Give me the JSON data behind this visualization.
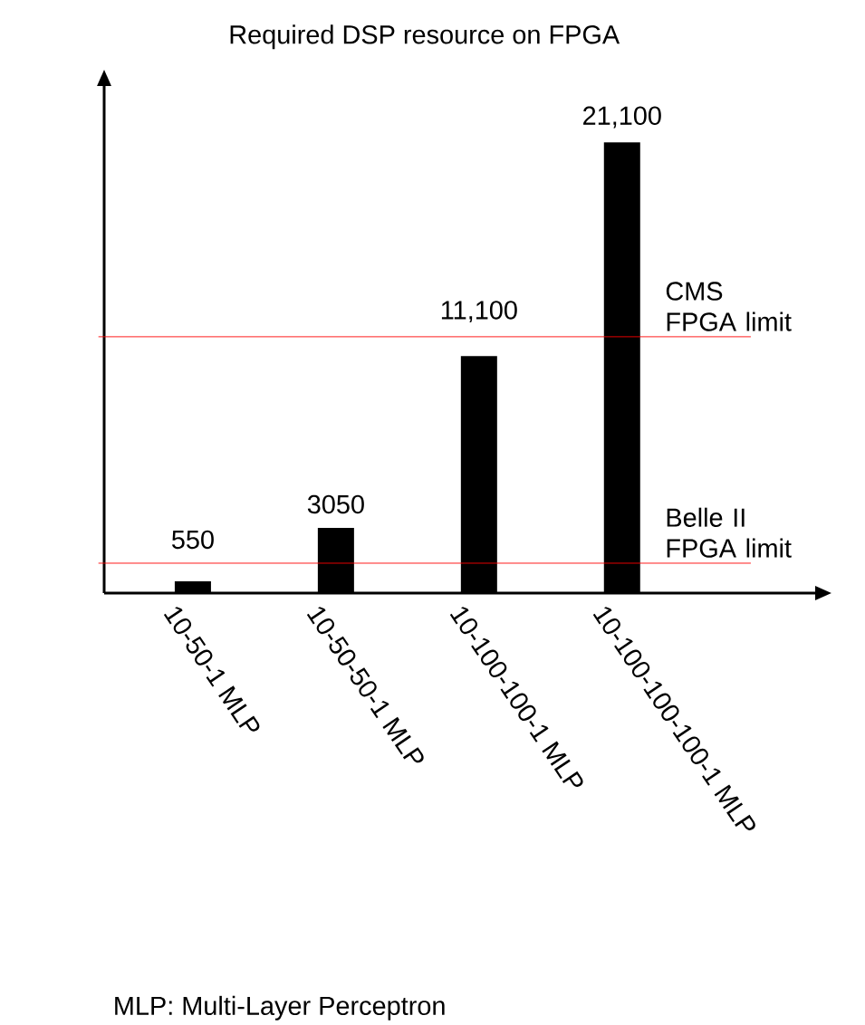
{
  "chart_data": {
    "type": "bar",
    "title": "Required DSP resource on FPGA",
    "categories": [
      "10-50-1 MLP",
      "10-50-50-1 MLP",
      "10-100-100-1 MLP",
      "10-100-100-100-1 MLP"
    ],
    "values": [
      550,
      3050,
      11100,
      21100
    ],
    "value_labels": [
      "550",
      "3050",
      "11,100",
      "21,100"
    ],
    "color": "#000000",
    "ref_lines": [
      {
        "axis": "y",
        "value": 1400,
        "label": "Belle II FPGA limit",
        "color": "#ff0000"
      },
      {
        "axis": "y",
        "value": 12000,
        "label": "CMS FPGA limit",
        "color": "#ff0000"
      }
    ],
    "annotations": [
      "MLP: Multi-Layer Perceptron"
    ],
    "tick_labels": "x"
  }
}
